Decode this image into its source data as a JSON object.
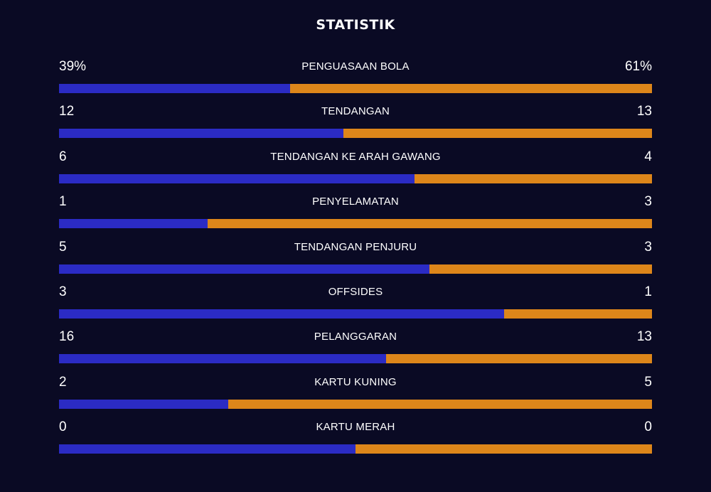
{
  "chart_data": {
    "type": "bar",
    "title": "STATISTIK",
    "colors": {
      "home": "#2b2bc4",
      "away": "#dd861a",
      "background": "#0a0a24"
    },
    "categories": [
      "PENGUASAAN BOLA",
      "TENDANGAN",
      "TENDANGAN KE ARAH GAWANG",
      "PENYELAMATAN",
      "TENDANGAN PENJURU",
      "OFFSIDES",
      "PELANGGARAN",
      "KARTU KUNING",
      "KARTU MERAH"
    ],
    "series": [
      {
        "name": "home",
        "values": [
          39,
          12,
          6,
          1,
          5,
          3,
          16,
          2,
          0
        ]
      },
      {
        "name": "away",
        "values": [
          61,
          13,
          4,
          3,
          3,
          1,
          13,
          5,
          0
        ]
      }
    ],
    "display": {
      "home": [
        "39%",
        "12",
        "6",
        "1",
        "5",
        "3",
        "16",
        "2",
        "0"
      ],
      "away": [
        "61%",
        "13",
        "4",
        "3",
        "3",
        "1",
        "13",
        "5",
        "0"
      ]
    }
  }
}
